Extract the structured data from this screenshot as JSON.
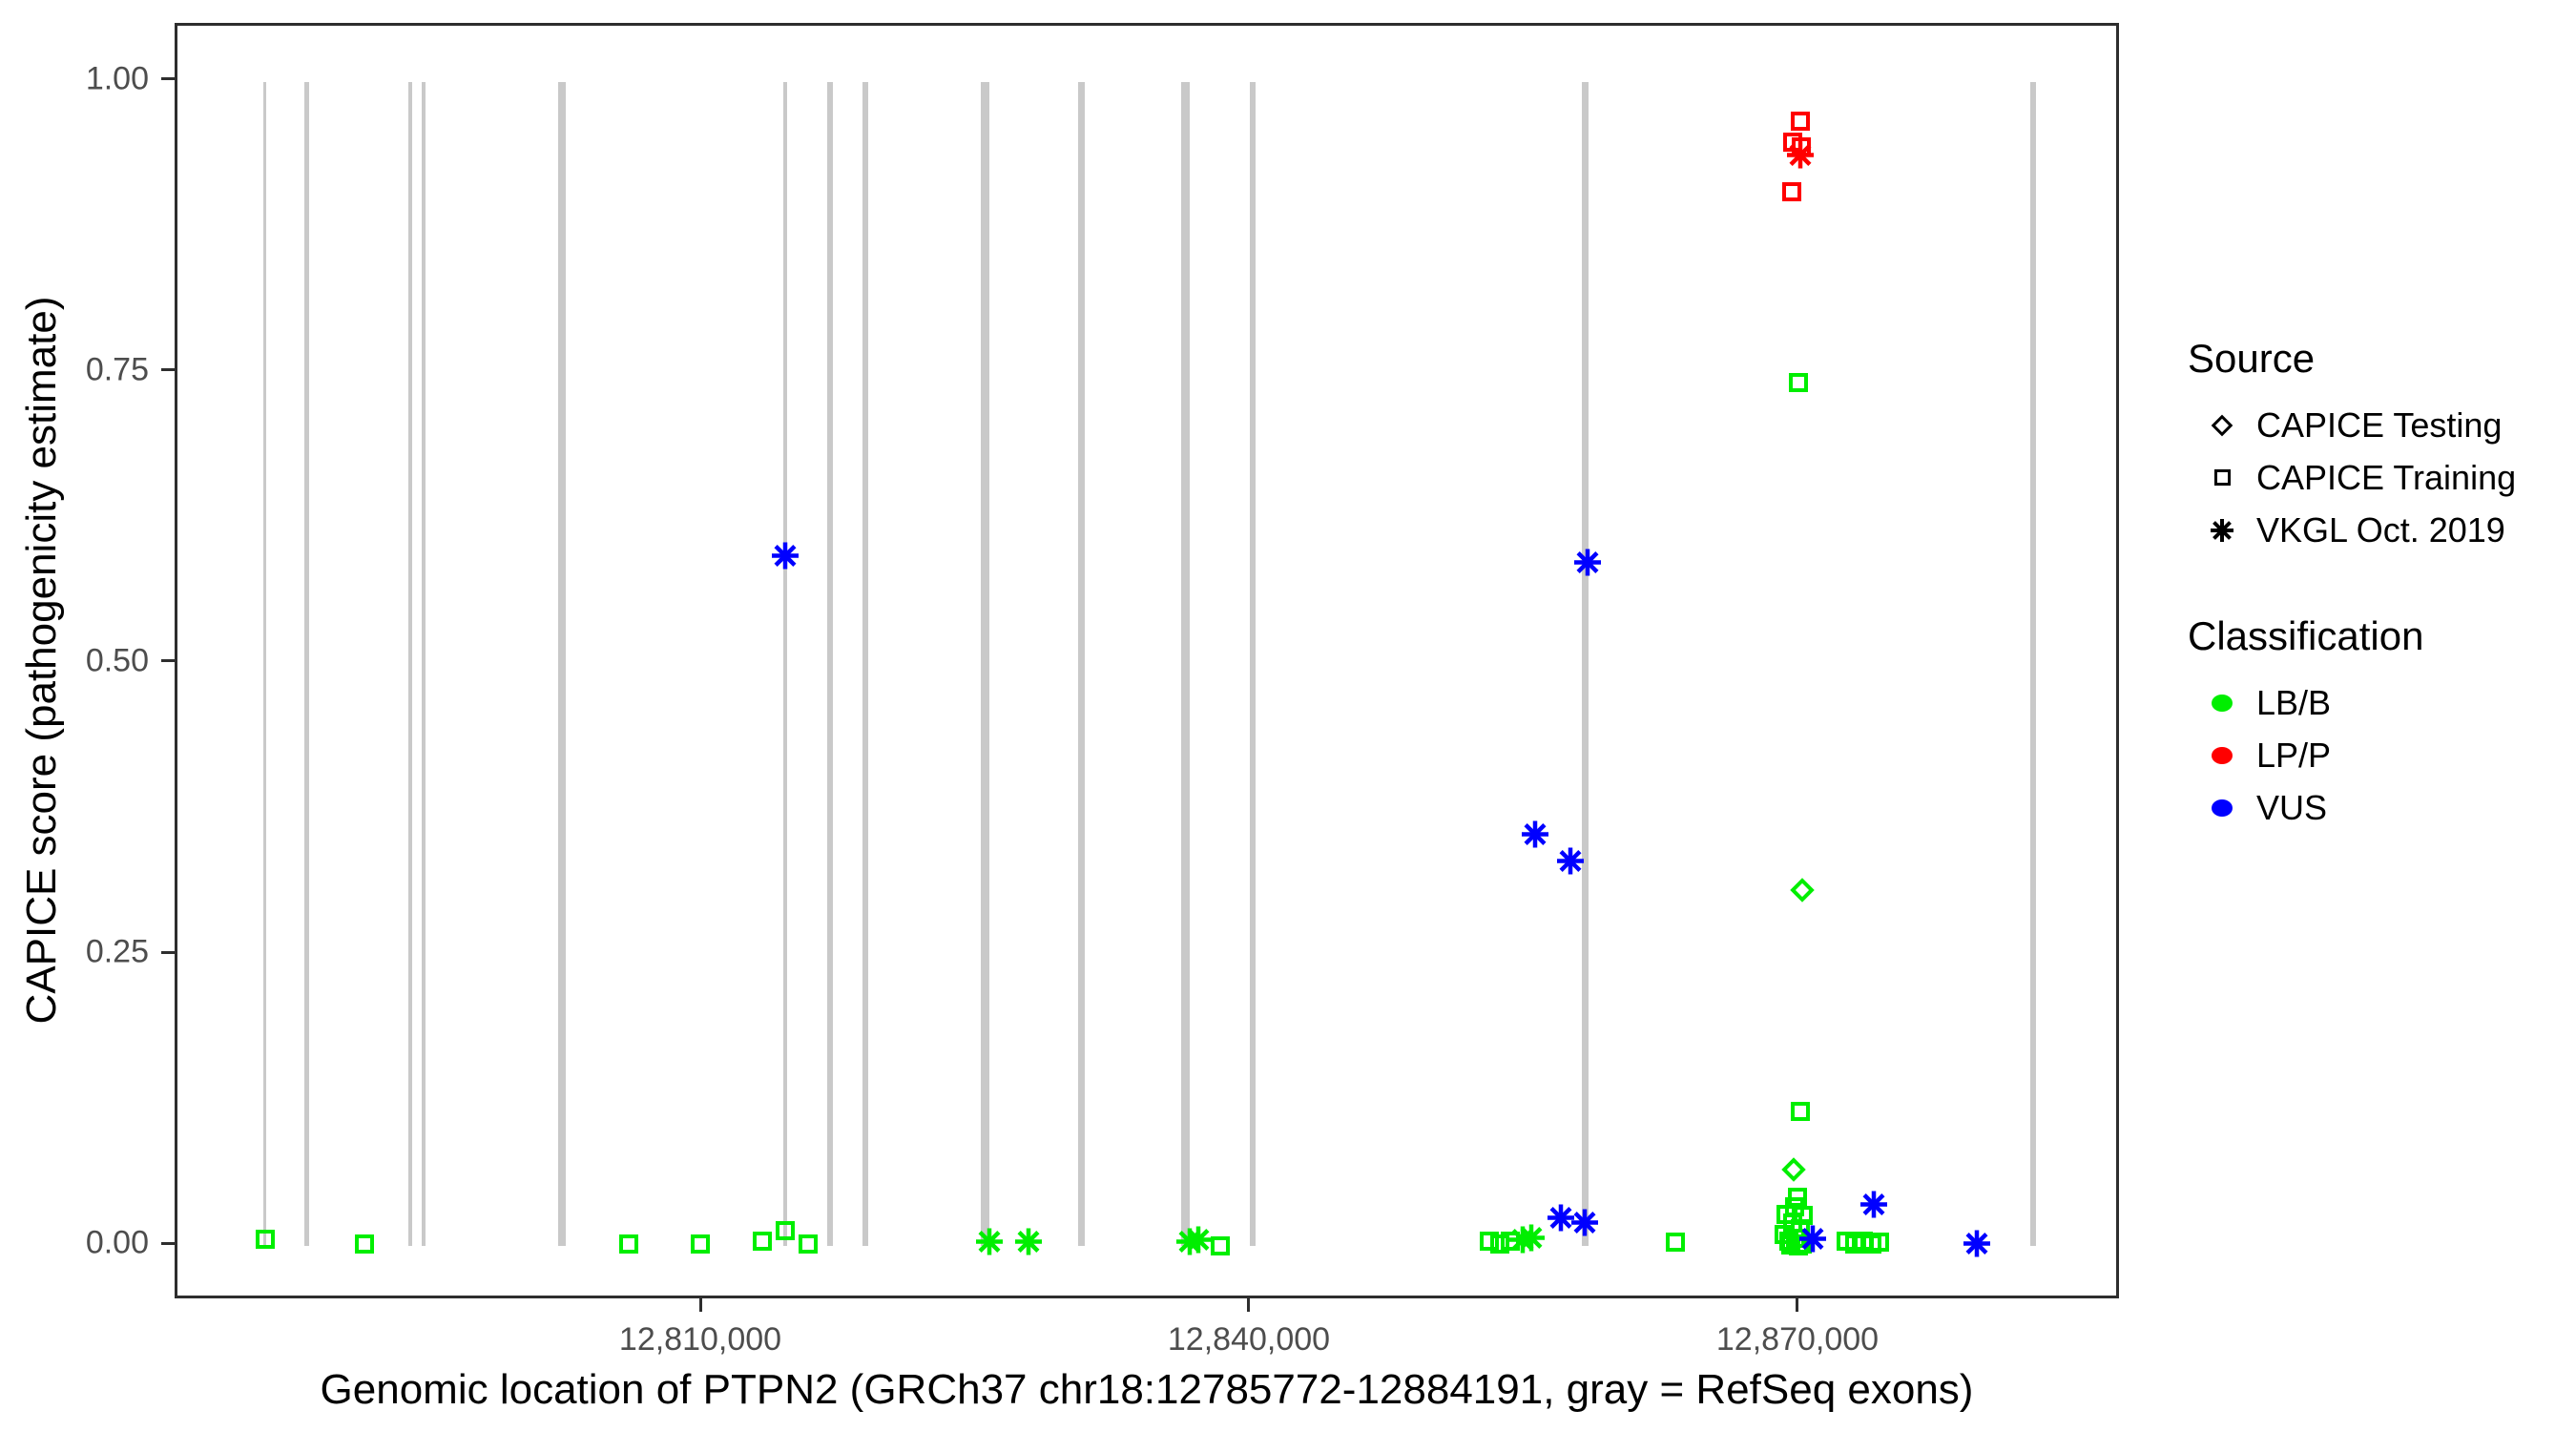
{
  "colors": {
    "LB/B": "#00EE00",
    "LP/P": "#FF0000",
    "VUS": "#0000FF",
    "exon": "#c9c9c9",
    "axis": "#2e2e2e",
    "tick_label": "#4d4d4d"
  },
  "legend": {
    "source": {
      "title": "Source",
      "items": [
        {
          "label": "CAPICE Testing",
          "shape": "diamond"
        },
        {
          "label": "CAPICE Training",
          "shape": "square"
        },
        {
          "label": "VKGL Oct. 2019",
          "shape": "asterisk"
        }
      ]
    },
    "classification": {
      "title": "Classification",
      "items": [
        {
          "label": "LB/B",
          "color": "#00EE00"
        },
        {
          "label": "LP/P",
          "color": "#FF0000"
        },
        {
          "label": "VUS",
          "color": "#0000FF"
        }
      ]
    }
  },
  "chart_data": {
    "type": "scatter",
    "title": "",
    "xlabel": "Genomic location of PTPN2 (GRCh37 chr18:12785772-12884191, gray = RefSeq exons)",
    "ylabel": "CAPICE score (pathogenicity estimate)",
    "x_axis": {
      "range": [
        12781252,
        12887583
      ],
      "ticks": [
        {
          "g": 12810000,
          "label": "12,810,000"
        },
        {
          "g": 12840000,
          "label": "12,840,000"
        },
        {
          "g": 12870000,
          "label": "12,870,000"
        }
      ]
    },
    "y_axis": {
      "range": [
        -0.0475,
        1.0483
      ],
      "ticks": [
        {
          "v": 0.0,
          "label": "0.00"
        },
        {
          "v": 0.25,
          "label": "0.25"
        },
        {
          "v": 0.5,
          "label": "0.50"
        },
        {
          "v": 0.75,
          "label": "0.75"
        },
        {
          "v": 1.0,
          "label": "1.00"
        }
      ]
    },
    "grid": false,
    "legend_position": "right",
    "exons": [
      {
        "g": 12786050,
        "w": 3
      },
      {
        "g": 12788300,
        "w": 5
      },
      {
        "g": 12794000,
        "w": 4
      },
      {
        "g": 12794700,
        "w": 4
      },
      {
        "g": 12802280,
        "w": 8
      },
      {
        "g": 12814490,
        "w": 4
      },
      {
        "g": 12816940,
        "w": 6
      },
      {
        "g": 12818870,
        "w": 6
      },
      {
        "g": 12825440,
        "w": 9
      },
      {
        "g": 12830710,
        "w": 7
      },
      {
        "g": 12836400,
        "w": 9
      },
      {
        "g": 12840050,
        "w": 6
      },
      {
        "g": 12858210,
        "w": 7
      },
      {
        "g": 12882730,
        "w": 6
      }
    ],
    "series": [
      {
        "source": "CAPICE Testing",
        "classification": "LB/B",
        "shape": "diamond",
        "points": [
          [
            12870100,
            0.306
          ],
          [
            12869630,
            0.066
          ]
        ]
      },
      {
        "source": "CAPICE Training",
        "classification": "LB/B",
        "shape": "square",
        "points": [
          [
            12869900,
            0.742
          ],
          [
            12870000,
            0.116
          ],
          [
            12869840,
            0.042
          ],
          [
            12869680,
            0.034
          ],
          [
            12869240,
            0.027
          ],
          [
            12870180,
            0.026
          ],
          [
            12869560,
            0.02
          ],
          [
            12869980,
            0.015
          ],
          [
            12869100,
            0.01
          ],
          [
            12869760,
            0.007
          ],
          [
            12869350,
            0.004
          ],
          [
            12870120,
            0.002
          ],
          [
            12869500,
            0.001
          ],
          [
            12869900,
            0.0
          ],
          [
            12872500,
            0.004
          ],
          [
            12872970,
            0.002
          ],
          [
            12873440,
            0.004
          ],
          [
            12873910,
            0.002
          ],
          [
            12874330,
            0.003
          ],
          [
            12863170,
            0.003
          ],
          [
            12852990,
            0.004
          ],
          [
            12853560,
            0.002
          ],
          [
            12854140,
            0.004
          ],
          [
            12786050,
            0.006
          ],
          [
            12791480,
            0.002
          ],
          [
            12805930,
            0.002
          ],
          [
            12809840,
            0.002
          ],
          [
            12813230,
            0.004
          ],
          [
            12814490,
            0.013
          ],
          [
            12815740,
            0.002
          ],
          [
            12838300,
            0.0
          ]
        ]
      },
      {
        "source": "CAPICE Training",
        "classification": "LP/P",
        "shape": "square",
        "points": [
          [
            12870000,
            0.966
          ],
          [
            12869580,
            0.948
          ],
          [
            12870050,
            0.944
          ],
          [
            12869530,
            0.906
          ]
        ]
      },
      {
        "source": "VKGL Oct. 2019",
        "classification": "LP/P",
        "shape": "asterisk",
        "points": [
          [
            12870000,
            0.935
          ]
        ]
      },
      {
        "source": "VKGL Oct. 2019",
        "classification": "LB/B",
        "shape": "asterisk",
        "points": [
          [
            12825650,
            0.002
          ],
          [
            12827790,
            0.002
          ],
          [
            12836600,
            0.002
          ],
          [
            12837100,
            0.003
          ],
          [
            12854810,
            0.003
          ],
          [
            12855280,
            0.005
          ]
        ]
      },
      {
        "source": "VKGL Oct. 2019",
        "classification": "VUS",
        "shape": "asterisk",
        "points": [
          [
            12814490,
            0.591
          ],
          [
            12858360,
            0.585
          ],
          [
            12855490,
            0.352
          ],
          [
            12857420,
            0.329
          ],
          [
            12856890,
            0.022
          ],
          [
            12858200,
            0.018
          ],
          [
            12870680,
            0.004
          ],
          [
            12874020,
            0.034
          ],
          [
            12879650,
            0.0
          ]
        ]
      }
    ]
  }
}
